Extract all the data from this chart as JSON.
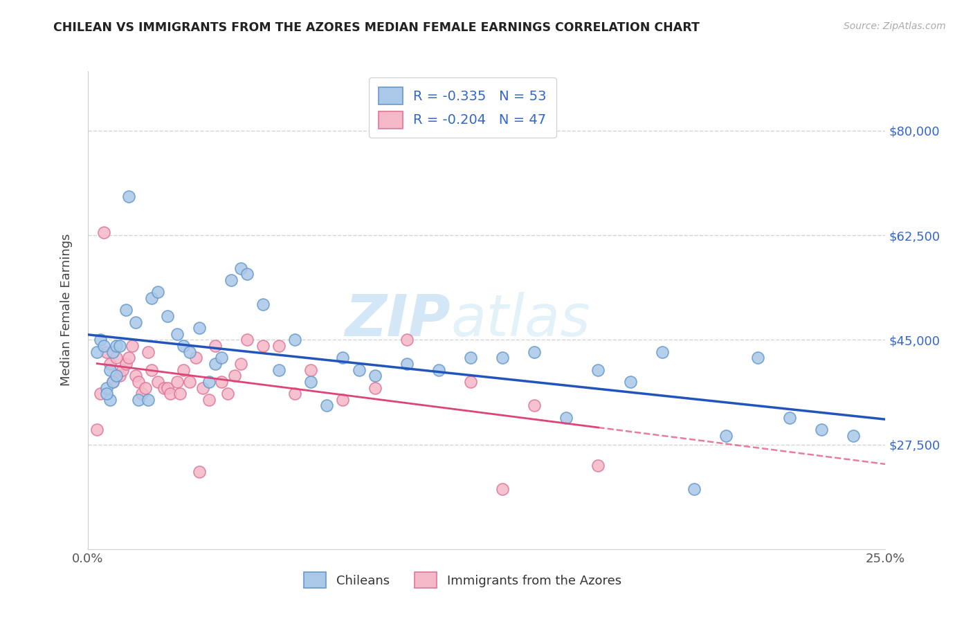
{
  "title": "CHILEAN VS IMMIGRANTS FROM THE AZORES MEDIAN FEMALE EARNINGS CORRELATION CHART",
  "source": "Source: ZipAtlas.com",
  "ylabel": "Median Female Earnings",
  "xlim": [
    0.0,
    0.25
  ],
  "ylim": [
    10000,
    90000
  ],
  "ytick_positions": [
    27500,
    45000,
    62500,
    80000
  ],
  "ytick_labels": [
    "$27,500",
    "$45,000",
    "$62,500",
    "$80,000"
  ],
  "background_color": "#ffffff",
  "grid_color": "#d0d0d0",
  "blue_scatter_color": "#aac8e8",
  "blue_edge_color": "#6699cc",
  "pink_scatter_color": "#f5b8c8",
  "pink_edge_color": "#dd7799",
  "blue_line_color": "#2255bb",
  "pink_line_color": "#dd4477",
  "legend_r1": "-0.335",
  "legend_n1": "53",
  "legend_r2": "-0.204",
  "legend_n2": "47",
  "legend_label1": "Chileans",
  "legend_label2": "Immigrants from the Azores",
  "accent_color": "#3366cc",
  "chileans_x": [
    0.003,
    0.004,
    0.005,
    0.006,
    0.007,
    0.007,
    0.008,
    0.008,
    0.009,
    0.009,
    0.01,
    0.012,
    0.013,
    0.015,
    0.016,
    0.019,
    0.02,
    0.022,
    0.025,
    0.028,
    0.03,
    0.032,
    0.035,
    0.038,
    0.04,
    0.042,
    0.045,
    0.048,
    0.05,
    0.055,
    0.06,
    0.065,
    0.07,
    0.075,
    0.08,
    0.085,
    0.09,
    0.1,
    0.11,
    0.12,
    0.13,
    0.14,
    0.15,
    0.16,
    0.17,
    0.18,
    0.19,
    0.2,
    0.21,
    0.22,
    0.23,
    0.24,
    0.006
  ],
  "chileans_y": [
    43000,
    45000,
    44000,
    37000,
    35000,
    40000,
    38000,
    43000,
    39000,
    44000,
    44000,
    50000,
    69000,
    48000,
    35000,
    35000,
    52000,
    53000,
    49000,
    46000,
    44000,
    43000,
    47000,
    38000,
    41000,
    42000,
    55000,
    57000,
    56000,
    51000,
    40000,
    45000,
    38000,
    34000,
    42000,
    40000,
    39000,
    41000,
    40000,
    42000,
    42000,
    43000,
    32000,
    40000,
    38000,
    43000,
    20000,
    29000,
    42000,
    32000,
    30000,
    29000,
    36000
  ],
  "azores_x": [
    0.003,
    0.004,
    0.005,
    0.006,
    0.007,
    0.008,
    0.009,
    0.01,
    0.011,
    0.012,
    0.013,
    0.014,
    0.015,
    0.016,
    0.017,
    0.018,
    0.019,
    0.02,
    0.022,
    0.024,
    0.025,
    0.026,
    0.028,
    0.029,
    0.03,
    0.032,
    0.034,
    0.035,
    0.036,
    0.038,
    0.04,
    0.042,
    0.044,
    0.046,
    0.048,
    0.05,
    0.055,
    0.06,
    0.065,
    0.07,
    0.08,
    0.09,
    0.1,
    0.12,
    0.13,
    0.14,
    0.16
  ],
  "azores_y": [
    30000,
    36000,
    63000,
    43000,
    41000,
    38000,
    42000,
    39000,
    40000,
    41000,
    42000,
    44000,
    39000,
    38000,
    36000,
    37000,
    43000,
    40000,
    38000,
    37000,
    37000,
    36000,
    38000,
    36000,
    40000,
    38000,
    42000,
    23000,
    37000,
    35000,
    44000,
    38000,
    36000,
    39000,
    41000,
    45000,
    44000,
    44000,
    36000,
    40000,
    35000,
    37000,
    45000,
    38000,
    20000,
    34000,
    24000
  ]
}
